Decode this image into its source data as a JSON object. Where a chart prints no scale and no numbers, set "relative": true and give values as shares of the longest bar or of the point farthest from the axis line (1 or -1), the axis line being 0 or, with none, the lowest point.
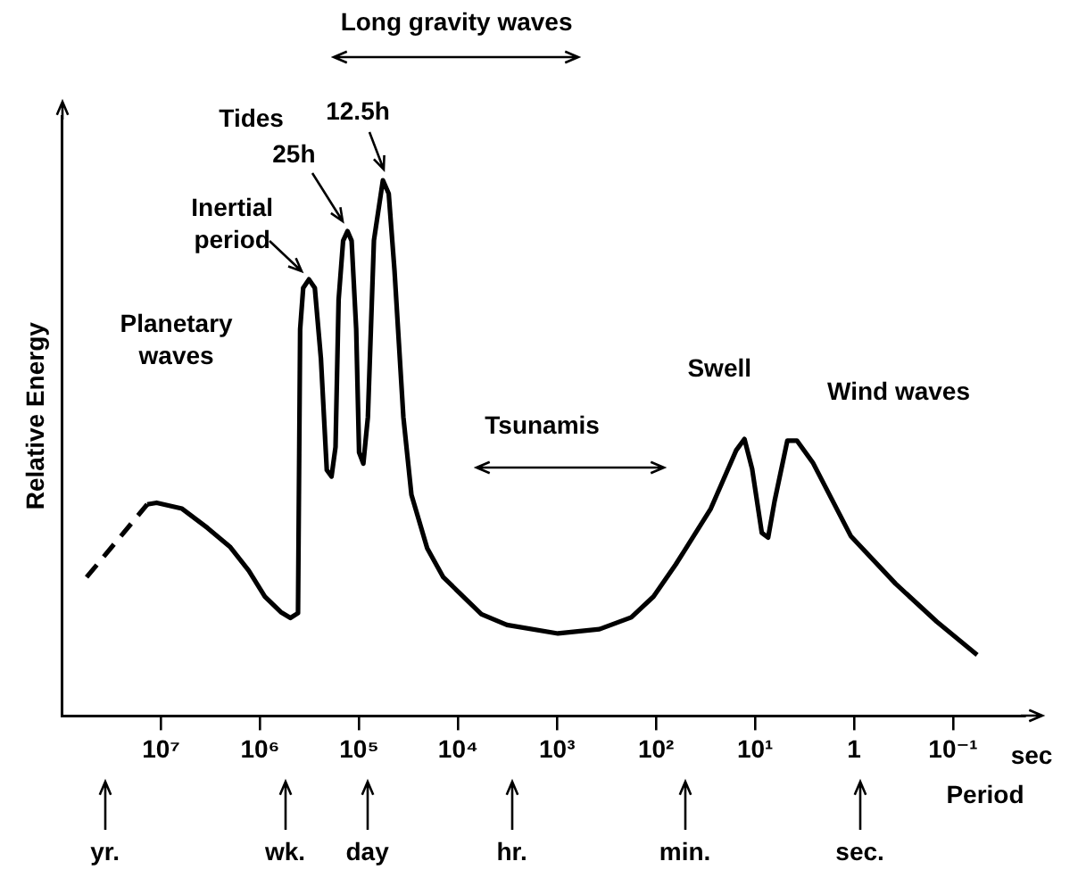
{
  "chart_data": {
    "type": "line",
    "relative": true,
    "xlabel": "Period",
    "ylabel": "Relative Energy",
    "log": "x",
    "xlim": [
      100000000.0,
      0.019
    ],
    "xticks": [
      {
        "value": 10000000.0,
        "label": "10⁷"
      },
      {
        "value": 1000000.0,
        "label": "10⁶"
      },
      {
        "value": 100000.0,
        "label": "10⁵"
      },
      {
        "value": 10000.0,
        "label": "10⁴"
      },
      {
        "value": 1000.0,
        "label": "10³"
      },
      {
        "value": 100,
        "label": "10²"
      },
      {
        "value": 10,
        "label": "10¹"
      },
      1,
      {
        "value": 0.1,
        "label": "10⁻¹"
      }
    ],
    "marker": "none",
    "line_style": "solid",
    "legend": false,
    "series": [
      {
        "color": "#000000",
        "line_style": "dashed",
        "x": [
          56600000.0,
          13800000.0
        ],
        "values": [
          0.259,
          0.395
        ]
      },
      {
        "color": "#000000",
        "x": [
          13800000.0,
          11100000.0,
          6150000.0,
          3400000.0,
          2020000.0,
          1300000.0,
          895000.0,
          618000.0,
          494000.0,
          414000.0,
          394000.0,
          367000.0,
          321000.0,
          280000.0,
          243000.0,
          212000.0,
          190000.0,
          173000.0,
          161000.0,
          145000.0,
          131000.0,
          119000.0,
          107000.0,
          100000.0,
          90600.0,
          81500.0,
          70800.0,
          57500.0,
          50200.0,
          43900.0,
          35700.0,
          29600.0,
          20500.0,
          14100.0,
          5810.0,
          3210.0,
          980,
          373,
          178,
          106,
          63.2,
          28.0,
          15.5,
          12.8,
          10.7,
          8.55,
          7.38,
          6.35,
          4.72,
          3.78,
          2.61,
          1.08,
          0.381,
          0.146,
          0.0571
        ],
        "values": [
          0.395,
          0.398,
          0.387,
          0.351,
          0.316,
          0.271,
          0.223,
          0.194,
          0.183,
          0.192,
          0.722,
          0.799,
          0.815,
          0.799,
          0.667,
          0.459,
          0.447,
          0.502,
          0.777,
          0.887,
          0.905,
          0.887,
          0.723,
          0.492,
          0.471,
          0.558,
          0.888,
          1,
          0.975,
          0.832,
          0.558,
          0.413,
          0.313,
          0.259,
          0.19,
          0.17,
          0.154,
          0.162,
          0.184,
          0.223,
          0.283,
          0.387,
          0.496,
          0.517,
          0.461,
          0.342,
          0.333,
          0.401,
          0.514,
          0.514,
          0.473,
          0.336,
          0.247,
          0.176,
          0.114
        ]
      }
    ],
    "annotations": [
      "Long gravity waves",
      "Planetary waves",
      {
        "text": "Inertial period",
        "x": 321000.0,
        "y": 0.815
      },
      "Tides",
      {
        "text": "25h",
        "x": 131000.0,
        "y": 0.905
      },
      {
        "text": "12.5h",
        "x": 57500.0,
        "y": 1
      },
      "Tsunamis",
      {
        "text": "Swell",
        "x": 12.8,
        "y": 0.517
      },
      {
        "text": "Wind waves",
        "x": 3.78,
        "y": 0.514
      },
      "yr.",
      "wk.",
      "day",
      "hr.",
      "min.",
      "sec.",
      "sec"
    ]
  }
}
